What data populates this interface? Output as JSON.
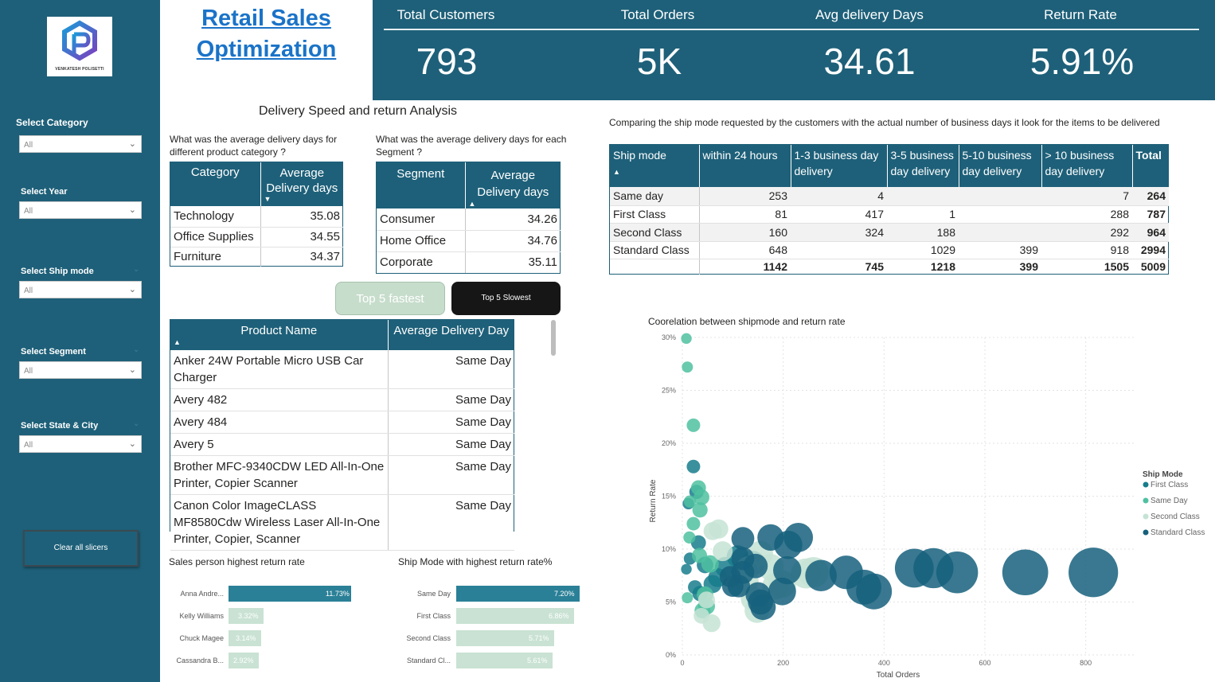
{
  "sidebar": {
    "logo_text": "VENKATESH POLISETTI",
    "slicers": [
      {
        "label": "Select Category",
        "value": "All"
      },
      {
        "label": "Select Year",
        "value": "All"
      },
      {
        "label": "Select Ship mode",
        "value": "All"
      },
      {
        "label": "Select Segment",
        "value": "All"
      },
      {
        "label": "Select State & City",
        "value": "All"
      }
    ],
    "clear_label": "Clear all slicers"
  },
  "title": {
    "line1": "Retail Sales",
    "line2": "Optimization"
  },
  "kpis": [
    {
      "label": "Total Customers",
      "value": "793"
    },
    {
      "label": "Total Orders",
      "value": "5K"
    },
    {
      "label": "Avg delivery Days",
      "value": "34.61"
    },
    {
      "label": "Return Rate",
      "value": "5.91%"
    }
  ],
  "section_title": "Delivery Speed and return Analysis",
  "category_table": {
    "question": "What was the average delivery days for different product category ?",
    "headers": [
      "Category",
      "Average Delivery days"
    ],
    "rows": [
      [
        "Technology",
        "35.08"
      ],
      [
        "Office Supplies",
        "34.55"
      ],
      [
        "Furniture",
        "34.37"
      ]
    ]
  },
  "segment_table": {
    "question": "What was the average delivery days for each Segment ?",
    "headers": [
      "Segment",
      "Average Delivery days"
    ],
    "rows": [
      [
        "Consumer",
        "34.26"
      ],
      [
        "Home Office",
        "34.76"
      ],
      [
        "Corporate",
        "35.11"
      ]
    ]
  },
  "buttons": {
    "fastest": "Top 5 fastest",
    "slowest": "Top 5 Slowest"
  },
  "product_table": {
    "headers": [
      "Product Name",
      "Average Delivery Day"
    ],
    "rows": [
      [
        "Anker 24W Portable Micro USB Car Charger",
        "Same Day"
      ],
      [
        "Avery 482",
        "Same Day"
      ],
      [
        "Avery 484",
        "Same Day"
      ],
      [
        "Avery 5",
        "Same Day"
      ],
      [
        "Brother MFC-9340CDW LED All-In-One Printer, Copier Scanner",
        "Same Day"
      ],
      [
        "Canon Color ImageCLASS MF8580Cdw Wireless Laser All-In-One Printer, Copier, Scanner",
        "Same Day"
      ]
    ]
  },
  "shipmode_matrix": {
    "caption": "Comparing the ship mode requested by the customers with the actual number of business days it look for the items to be delivered",
    "headers": [
      "Ship mode",
      "within 24 hours",
      "1-3 business day delivery",
      "3-5 business day delivery",
      "5-10 business day delivery",
      "> 10 business day delivery",
      "Total"
    ],
    "rows": [
      [
        "Same day",
        "253",
        "4",
        "",
        "",
        "7",
        "264"
      ],
      [
        "First Class",
        "81",
        "417",
        "1",
        "",
        "288",
        "787"
      ],
      [
        "Second Class",
        "160",
        "324",
        "188",
        "",
        "292",
        "964"
      ],
      [
        "Standard Class",
        "648",
        "",
        "1029",
        "399",
        "918",
        "2994"
      ]
    ],
    "totals": [
      "",
      "1142",
      "745",
      "1218",
      "399",
      "1505",
      "5009"
    ]
  },
  "salesperson_chart": {
    "title": "Sales person highest return rate",
    "bars": [
      {
        "name": "Anna Andre...",
        "value": 11.73,
        "label": "11.73%"
      },
      {
        "name": "Kelly Williams",
        "value": 3.32,
        "label": "3.32%"
      },
      {
        "name": "Chuck Magee",
        "value": 3.14,
        "label": "3.14%"
      },
      {
        "name": "Cassandra B...",
        "value": 2.92,
        "label": "2.92%"
      }
    ]
  },
  "shipmode_return_chart": {
    "title": "Ship Mode with highest return rate%",
    "bars": [
      {
        "name": "Same Day",
        "value": 7.2,
        "label": "7.20%"
      },
      {
        "name": "First Class",
        "value": 6.86,
        "label": "6.86%"
      },
      {
        "name": "Second Class",
        "value": 5.71,
        "label": "5.71%"
      },
      {
        "name": "Standard Cl...",
        "value": 5.61,
        "label": "5.61%"
      }
    ]
  },
  "colors": {
    "primary": "#1e6079",
    "bar_highlight": "#2a8097",
    "bar_muted": "#c9e2d3",
    "first_class": "#177d8c",
    "same_day": "#4fc1a0",
    "second_class": "#c5e3d5",
    "standard_class": "#16607c"
  },
  "chart_data": {
    "type": "scatter",
    "title": "Coorelation between shipmode and return rate",
    "xlabel": "Total Orders",
    "ylabel": "Return Rate",
    "xlim": [
      0,
      900
    ],
    "ylim": [
      0,
      30
    ],
    "x_ticks": [
      0,
      200,
      400,
      600,
      800
    ],
    "x_tick_labels": [
      "0",
      "200",
      "400",
      "600",
      "800"
    ],
    "y_ticks": [
      0,
      5,
      10,
      15,
      20,
      25,
      30
    ],
    "y_tick_labels": [
      "0%",
      "5%",
      "10%",
      "15%",
      "20%",
      "25%",
      "30%"
    ],
    "legend_title": "Ship Mode",
    "legend_position": "right",
    "grid": true,
    "series": [
      {
        "name": "First Class",
        "color": "#177d8c",
        "points": [
          [
            12,
            14.3
          ],
          [
            22,
            17.8
          ],
          [
            28,
            15.4
          ],
          [
            32,
            10.6
          ],
          [
            45,
            8.5
          ],
          [
            70,
            7.3
          ],
          [
            85,
            8.3
          ],
          [
            110,
            9.3
          ],
          [
            120,
            7.8
          ],
          [
            140,
            8.7
          ],
          [
            25,
            6.4
          ],
          [
            35,
            5.8
          ],
          [
            8,
            8.1
          ],
          [
            15,
            9.1
          ],
          [
            60,
            6.7
          ]
        ]
      },
      {
        "name": "Same Day",
        "color": "#4fc1a0",
        "points": [
          [
            8,
            29.9
          ],
          [
            10,
            27.2
          ],
          [
            22,
            21.7
          ],
          [
            15,
            14.5
          ],
          [
            32,
            15.8
          ],
          [
            38,
            14.9
          ],
          [
            35,
            13.7
          ],
          [
            14,
            11.1
          ],
          [
            34,
            9.4
          ],
          [
            10,
            5.4
          ],
          [
            45,
            5.7
          ],
          [
            48,
            4.6
          ],
          [
            40,
            4.2
          ],
          [
            22,
            12.4
          ],
          [
            55,
            8.6
          ]
        ]
      },
      {
        "name": "Second Class",
        "color": "#c5e3d5",
        "points": [
          [
            60,
            11.7
          ],
          [
            72,
            11.9
          ],
          [
            80,
            9.8
          ],
          [
            130,
            8.2
          ],
          [
            155,
            9.6
          ],
          [
            175,
            8.3
          ],
          [
            185,
            6.5
          ],
          [
            198,
            6.7
          ],
          [
            245,
            7.7
          ],
          [
            260,
            7.8
          ],
          [
            140,
            5.3
          ],
          [
            148,
            4.2
          ],
          [
            128,
            7.0
          ],
          [
            38,
            3.7
          ],
          [
            48,
            5.2
          ],
          [
            58,
            3.0
          ]
        ]
      },
      {
        "name": "Standard Class",
        "color": "#16607c",
        "points": [
          [
            120,
            11.0
          ],
          [
            175,
            11.1
          ],
          [
            210,
            10.4
          ],
          [
            230,
            11.1
          ],
          [
            208,
            8.0
          ],
          [
            275,
            7.5
          ],
          [
            325,
            7.8
          ],
          [
            198,
            6.0
          ],
          [
            150,
            5.7
          ],
          [
            112,
            6.5
          ],
          [
            95,
            7.4
          ],
          [
            120,
            9.1
          ],
          [
            145,
            8.4
          ],
          [
            360,
            6.4
          ],
          [
            380,
            6.0
          ],
          [
            460,
            8.2
          ],
          [
            498,
            8.2
          ],
          [
            545,
            7.8
          ],
          [
            680,
            7.8
          ],
          [
            815,
            7.8
          ],
          [
            155,
            5.0
          ],
          [
            160,
            4.5
          ],
          [
            100,
            6.5
          ],
          [
            120,
            7.8
          ]
        ]
      }
    ]
  }
}
